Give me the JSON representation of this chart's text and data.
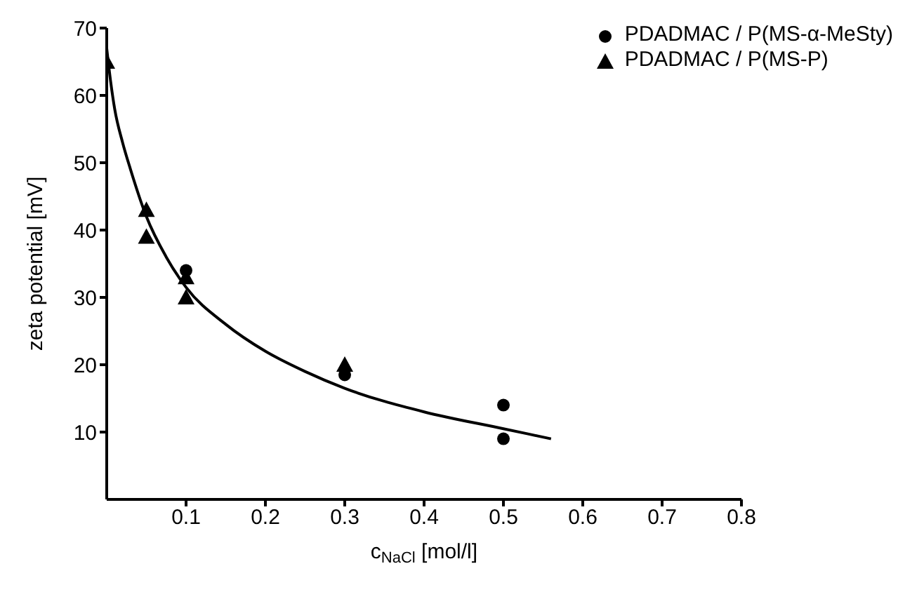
{
  "chart_data": {
    "type": "scatter",
    "xlabel": "c$_{NaCl}$ [mol/l]",
    "ylabel": "zeta potential [mV]",
    "xlim": [
      0,
      0.8
    ],
    "xticks": [
      0.1,
      0.2,
      0.3,
      0.4,
      0.5,
      0.6,
      0.7,
      0.8
    ],
    "ylim": [
      0,
      70
    ],
    "yticks": [
      10,
      20,
      30,
      40,
      50,
      60,
      70
    ],
    "legend": "top right",
    "series": [
      {
        "name": "PDADMAC / P(MS-α-MeSty)",
        "color": "#000000",
        "marker": "circle",
        "x": [
          0.1,
          0.3,
          0.5,
          0.5
        ],
        "values": [
          34,
          18.5,
          14,
          9
        ]
      },
      {
        "name": "PDADMAC / P(MS-P)",
        "color": "#000000",
        "marker": "triangle",
        "x": [
          0,
          0.05,
          0.05,
          0.1,
          0.1,
          0.3
        ],
        "values": [
          65,
          43,
          39,
          33,
          30,
          20
        ]
      },
      {
        "type": "line",
        "color": "#000000",
        "marker": "none",
        "x": [
          0,
          0.005,
          0.01,
          0.02,
          0.03,
          0.05,
          0.075,
          0.1,
          0.15,
          0.2,
          0.25,
          0.3,
          0.4,
          0.5,
          0.56
        ],
        "values": [
          67,
          62,
          58,
          53,
          49,
          42,
          36,
          31.5,
          26,
          22,
          19,
          16.5,
          13,
          10.5,
          9
        ]
      }
    ]
  }
}
